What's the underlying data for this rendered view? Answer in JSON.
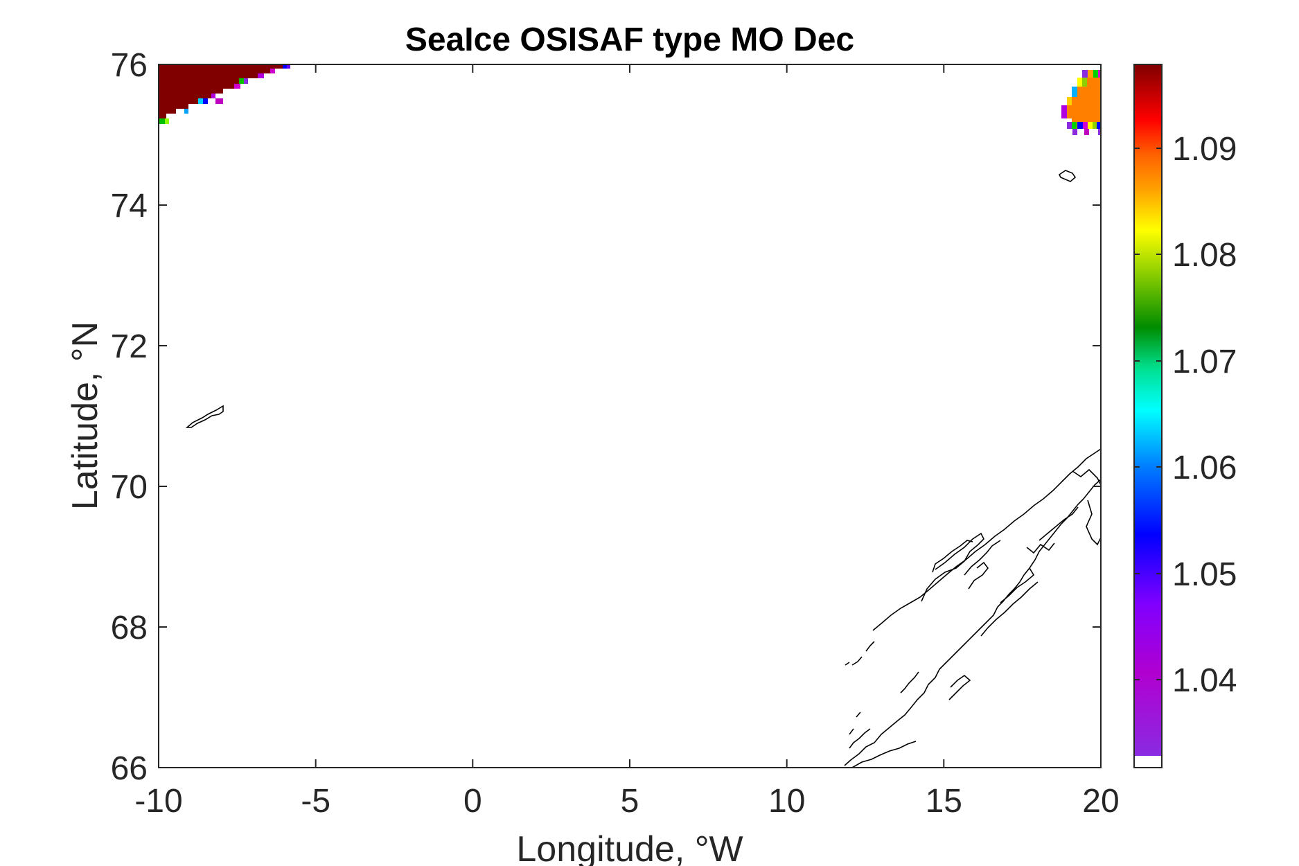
{
  "chart_data": {
    "type": "heatmap",
    "title": "SeaIce OSISAF type MO Dec",
    "xlabel": "Longitude, °W",
    "ylabel": "Latitude, °N",
    "xlim": [
      -10,
      20
    ],
    "ylim": [
      66,
      76
    ],
    "xticks": [
      "-10",
      "-5",
      "0",
      "5",
      "10",
      "15",
      "20"
    ],
    "yticks": [
      "66",
      "68",
      "70",
      "72",
      "74",
      "76"
    ],
    "colorbar": {
      "range": [
        1.032,
        1.098
      ],
      "ticks": [
        "1.04",
        "1.05",
        "1.06",
        "1.07",
        "1.08",
        "1.09"
      ],
      "colormap": [
        "#8a2be2",
        "#b000d0",
        "#c000c0",
        "#0000ff",
        "#00ffff",
        "#00a000",
        "#ffff00",
        "#ff8000",
        "#ff0000",
        "#800000"
      ],
      "nan_color": "#ffffff"
    },
    "ice_regions": [
      {
        "name": "northwest",
        "lon_range": [
          -10,
          -6
        ],
        "lat_range": [
          75.1,
          76
        ],
        "dominant_value": 1.098
      },
      {
        "name": "northeast",
        "lon_range": [
          18.9,
          20
        ],
        "lat_range": [
          75.0,
          75.9
        ],
        "dominant_value": 1.083
      }
    ],
    "land_outlines": [
      "Jan Mayen",
      "Bjornoya",
      "Norway coast"
    ],
    "grid": false
  }
}
